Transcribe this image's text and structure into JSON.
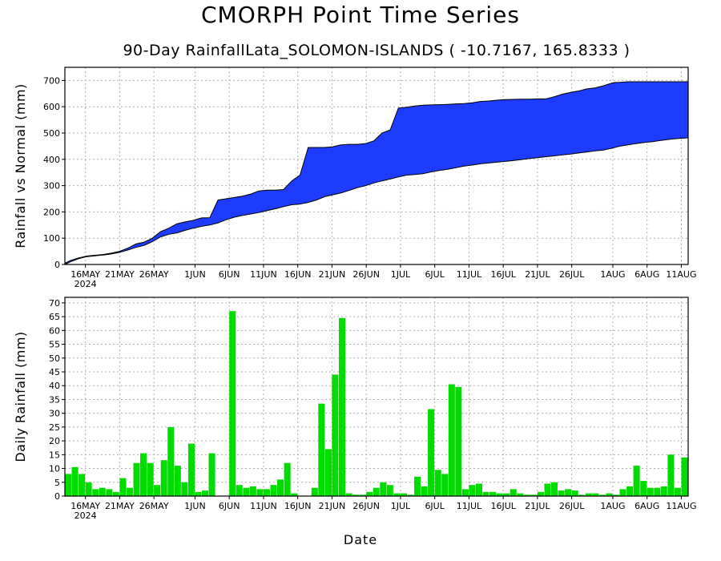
{
  "title": "CMORPH Point Time Series",
  "subtitle": "90-Day RainfallLata_SOLOMON-ISLANDS ( -10.7167, 165.8333 )",
  "xlabel": "Date",
  "x_ticks": [
    "16MAY",
    "21MAY",
    "26MAY",
    "1JUN",
    "6JUN",
    "11JUN",
    "16JUN",
    "21JUN",
    "26JUN",
    "1JUL",
    "6JUL",
    "11JUL",
    "16JUL",
    "21JUL",
    "26JUL",
    "1AUG",
    "6AUG",
    "11AUG"
  ],
  "x_year_label": "2024",
  "colors": {
    "accum_fill": "#1e3cff",
    "daily_bar": "#00dc00",
    "grid": "#b0b0b0"
  },
  "chart_data": [
    {
      "type": "area",
      "title": "",
      "ylabel": "Rainfall vs Normal (mm)",
      "xlabel": "Date",
      "ylim": [
        0,
        750
      ],
      "y_ticks": [
        0,
        100,
        200,
        300,
        400,
        500,
        600,
        700
      ],
      "grid": true,
      "x_start": "2024-05-13",
      "x_end": "2024-08-11",
      "series": [
        {
          "values": [
            [
              0,
              0
            ],
            [
              2,
              10
            ],
            [
              5,
              22
            ],
            [
              8,
              30
            ],
            [
              11,
              33
            ],
            [
              14,
              36
            ],
            [
              17,
              40
            ],
            [
              20,
              46
            ],
            [
              23,
              55
            ],
            [
              26,
              65
            ],
            [
              29,
              73
            ],
            [
              32,
              87
            ],
            [
              35,
              105
            ],
            [
              38,
              115
            ],
            [
              41,
              120
            ],
            [
              44,
              130
            ],
            [
              47,
              138
            ],
            [
              50,
              145
            ],
            [
              53,
              150
            ],
            [
              56,
              158
            ],
            [
              59,
              170
            ],
            [
              62,
              180
            ],
            [
              65,
              187
            ],
            [
              68,
              192
            ],
            [
              71,
              198
            ],
            [
              74,
              205
            ],
            [
              77,
              212
            ],
            [
              80,
              220
            ],
            [
              83,
              227
            ],
            [
              86,
              230
            ],
            [
              89,
              236
            ],
            [
              92,
              245
            ],
            [
              95,
              258
            ],
            [
              98,
              265
            ],
            [
              101,
              272
            ],
            [
              104,
              282
            ],
            [
              107,
              292
            ],
            [
              110,
              300
            ],
            [
              113,
              310
            ],
            [
              116,
              318
            ],
            [
              119,
              325
            ],
            [
              122,
              333
            ],
            [
              125,
              340
            ],
            [
              128,
              342
            ],
            [
              131,
              345
            ],
            [
              134,
              352
            ],
            [
              137,
              358
            ],
            [
              140,
              362
            ],
            [
              143,
              368
            ],
            [
              146,
              374
            ],
            [
              149,
              378
            ],
            [
              152,
              383
            ],
            [
              155,
              386
            ],
            [
              158,
              389
            ],
            [
              161,
              392
            ],
            [
              164,
              395
            ],
            [
              167,
              399
            ],
            [
              170,
              403
            ],
            [
              173,
              406
            ],
            [
              176,
              410
            ],
            [
              179,
              413
            ],
            [
              182,
              417
            ],
            [
              185,
              420
            ],
            [
              188,
              424
            ],
            [
              191,
              428
            ],
            [
              194,
              432
            ],
            [
              197,
              435
            ],
            [
              200,
              442
            ],
            [
              203,
              450
            ],
            [
              206,
              455
            ],
            [
              209,
              460
            ],
            [
              212,
              464
            ],
            [
              215,
              467
            ],
            [
              218,
              472
            ],
            [
              221,
              476
            ],
            [
              224,
              479
            ],
            [
              227,
              481
            ],
            [
              228,
              482
            ]
          ]
        },
        {
          "values": [
            [
              0,
              5
            ],
            [
              2,
              15
            ],
            [
              5,
              25
            ],
            [
              8,
              32
            ],
            [
              11,
              35
            ],
            [
              14,
              38
            ],
            [
              17,
              43
            ],
            [
              20,
              50
            ],
            [
              23,
              62
            ],
            [
              26,
              78
            ],
            [
              29,
              85
            ],
            [
              32,
              100
            ],
            [
              35,
              125
            ],
            [
              38,
              138
            ],
            [
              41,
              155
            ],
            [
              44,
              162
            ],
            [
              47,
              168
            ],
            [
              50,
              177
            ],
            [
              53,
              178
            ],
            [
              56,
              245
            ],
            [
              59,
              250
            ],
            [
              62,
              255
            ],
            [
              65,
              260
            ],
            [
              68,
              268
            ],
            [
              71,
              280
            ],
            [
              74,
              283
            ],
            [
              77,
              283
            ],
            [
              80,
              285
            ],
            [
              83,
              318
            ],
            [
              86,
              340
            ],
            [
              89,
              445
            ],
            [
              92,
              445
            ],
            [
              95,
              445
            ],
            [
              98,
              448
            ],
            [
              101,
              455
            ],
            [
              104,
              457
            ],
            [
              107,
              457
            ],
            [
              110,
              460
            ],
            [
              113,
              470
            ],
            [
              116,
              500
            ],
            [
              119,
              512
            ],
            [
              122,
              595
            ],
            [
              125,
              598
            ],
            [
              128,
              603
            ],
            [
              131,
              606
            ],
            [
              134,
              607
            ],
            [
              137,
              608
            ],
            [
              140,
              609
            ],
            [
              143,
              611
            ],
            [
              146,
              612
            ],
            [
              149,
              615
            ],
            [
              152,
              620
            ],
            [
              155,
              622
            ],
            [
              158,
              625
            ],
            [
              161,
              627
            ],
            [
              164,
              628
            ],
            [
              167,
              629
            ],
            [
              170,
              629
            ],
            [
              173,
              630
            ],
            [
              176,
              630
            ],
            [
              179,
              638
            ],
            [
              182,
              648
            ],
            [
              185,
              655
            ],
            [
              188,
              660
            ],
            [
              191,
              668
            ],
            [
              194,
              672
            ],
            [
              197,
              680
            ],
            [
              200,
              690
            ],
            [
              201,
              692
            ],
            [
              203,
              693
            ],
            [
              206,
              695
            ],
            [
              209,
              695
            ],
            [
              212,
              695
            ],
            [
              215,
              695
            ],
            [
              218,
              695
            ],
            [
              221,
              695
            ],
            [
              224,
              695
            ],
            [
              227,
              695
            ],
            [
              228,
              695
            ]
          ]
        }
      ]
    },
    {
      "type": "bar",
      "title": "",
      "ylabel": "Daily Rainfall (mm)",
      "xlabel": "Date",
      "ylim": [
        0,
        72
      ],
      "y_ticks": [
        0,
        5,
        10,
        15,
        20,
        25,
        30,
        35,
        40,
        45,
        50,
        55,
        60,
        65,
        70
      ],
      "grid": true,
      "categories": [
        "13MAY",
        "14MAY",
        "15MAY",
        "16MAY",
        "17MAY",
        "18MAY",
        "19MAY",
        "20MAY",
        "21MAY",
        "22MAY",
        "23MAY",
        "24MAY",
        "25MAY",
        "26MAY",
        "27MAY",
        "28MAY",
        "29MAY",
        "30MAY",
        "31MAY",
        "1JUN",
        "2JUN",
        "3JUN",
        "4JUN",
        "5JUN",
        "6JUN",
        "7JUN",
        "8JUN",
        "9JUN",
        "10JUN",
        "11JUN",
        "12JUN",
        "13JUN",
        "14JUN",
        "15JUN",
        "16JUN",
        "17JUN",
        "18JUN",
        "19JUN",
        "20JUN",
        "21JUN",
        "22JUN",
        "23JUN",
        "24JUN",
        "25JUN",
        "26JUN",
        "27JUN",
        "28JUN",
        "29JUN",
        "30JUN",
        "1JUL",
        "2JUL",
        "3JUL",
        "4JUL",
        "5JUL",
        "6JUL",
        "7JUL",
        "8JUL",
        "9JUL",
        "10JUL",
        "11JUL",
        "12JUL",
        "13JUL",
        "14JUL",
        "15JUL",
        "16JUL",
        "17JUL",
        "18JUL",
        "19JUL",
        "20JUL",
        "21JUL",
        "22JUL",
        "23JUL",
        "24JUL",
        "25JUL",
        "26JUL",
        "27JUL",
        "28JUL",
        "29JUL",
        "30JUL",
        "31JUL",
        "1AUG",
        "2AUG",
        "3AUG",
        "4AUG",
        "5AUG",
        "6AUG",
        "7AUG",
        "8AUG",
        "9AUG",
        "10AUG",
        "11AUG"
      ],
      "values": [
        8,
        10.5,
        8,
        5,
        2.5,
        3,
        2.5,
        1.5,
        6.5,
        3,
        12,
        15.5,
        12,
        4,
        13,
        25,
        11,
        5,
        19,
        1.5,
        2,
        15.5,
        0,
        0,
        67,
        4,
        3,
        3.5,
        2.5,
        2.5,
        4,
        6,
        12,
        1,
        0,
        0,
        3,
        33.5,
        17,
        44,
        64.5,
        1,
        0.5,
        0.5,
        1.5,
        3,
        5,
        4,
        1,
        1,
        0.5,
        7,
        3.5,
        31.5,
        9.5,
        8,
        40.5,
        39.5,
        2.5,
        4,
        4.5,
        1.5,
        1.5,
        1,
        1,
        2.5,
        1,
        0.5,
        0.5,
        1.5,
        4.5,
        5,
        2,
        2.5,
        2,
        0.5,
        1,
        1,
        0.5,
        1,
        0.5,
        2.5,
        3.5,
        11,
        5.5,
        3,
        3,
        3.5,
        15,
        3,
        14
      ]
    }
  ]
}
